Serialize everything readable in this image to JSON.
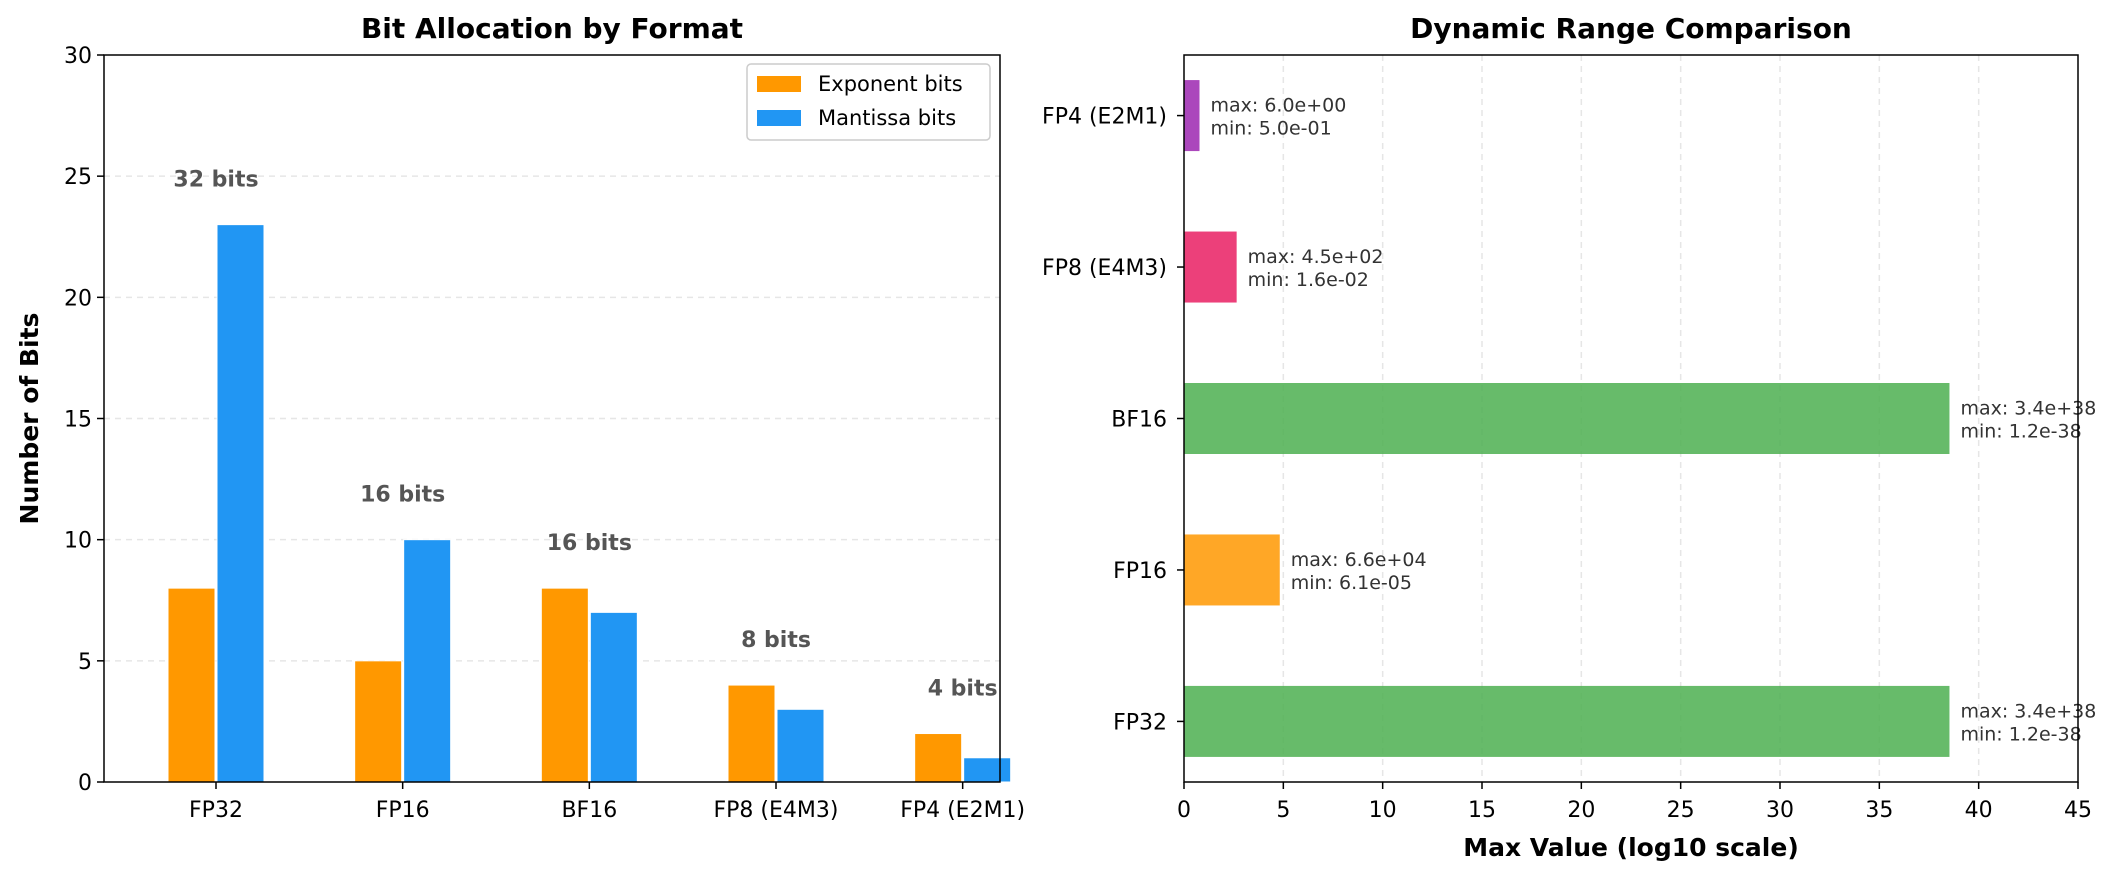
{
  "chart_data": [
    {
      "type": "bar",
      "title": "Bit Allocation by Format",
      "xlabel": "",
      "ylabel": "Number of Bits",
      "categories": [
        "FP32",
        "FP16",
        "BF16",
        "FP8 (E4M3)",
        "FP4 (E2M1)"
      ],
      "series": [
        {
          "name": "Exponent bits",
          "color": "#ff9800",
          "values": [
            8,
            5,
            8,
            4,
            2
          ]
        },
        {
          "name": "Mantissa bits",
          "color": "#2196f3",
          "values": [
            23,
            10,
            7,
            3,
            1
          ]
        }
      ],
      "totals": [
        32,
        16,
        16,
        8,
        4
      ],
      "total_labels": [
        "32 bits",
        "16 bits",
        "16 bits",
        "8 bits",
        "4 bits"
      ],
      "ylim": [
        0,
        30
      ],
      "yticks": [
        0,
        5,
        10,
        15,
        20,
        25,
        30
      ],
      "grid": "y-dashed",
      "legend": "upper-right"
    },
    {
      "type": "bar",
      "orientation": "horizontal",
      "title": "Dynamic Range Comparison",
      "xlabel": "Max Value (log10 scale)",
      "ylabel": "",
      "categories": [
        "FP32",
        "FP16",
        "BF16",
        "FP8 (E4M3)",
        "FP4 (E2M1)"
      ],
      "values": [
        38.53,
        4.82,
        38.53,
        2.65,
        0.78
      ],
      "colors": [
        "#4caf50",
        "#ff9800",
        "#4caf50",
        "#e91e63",
        "#9c27b0"
      ],
      "annotations": [
        [
          "max: 3.4e+38",
          "min: 1.2e-38"
        ],
        [
          "max: 6.6e+04",
          "min: 6.1e-05"
        ],
        [
          "max: 3.4e+38",
          "min: 1.2e-38"
        ],
        [
          "max: 4.5e+02",
          "min: 1.6e-02"
        ],
        [
          "max: 6.0e+00",
          "min: 5.0e-01"
        ]
      ],
      "xlim": [
        0,
        45
      ],
      "xticks": [
        0,
        5,
        10,
        15,
        20,
        25,
        30,
        35,
        40,
        45
      ],
      "grid": "x-dashed"
    }
  ]
}
